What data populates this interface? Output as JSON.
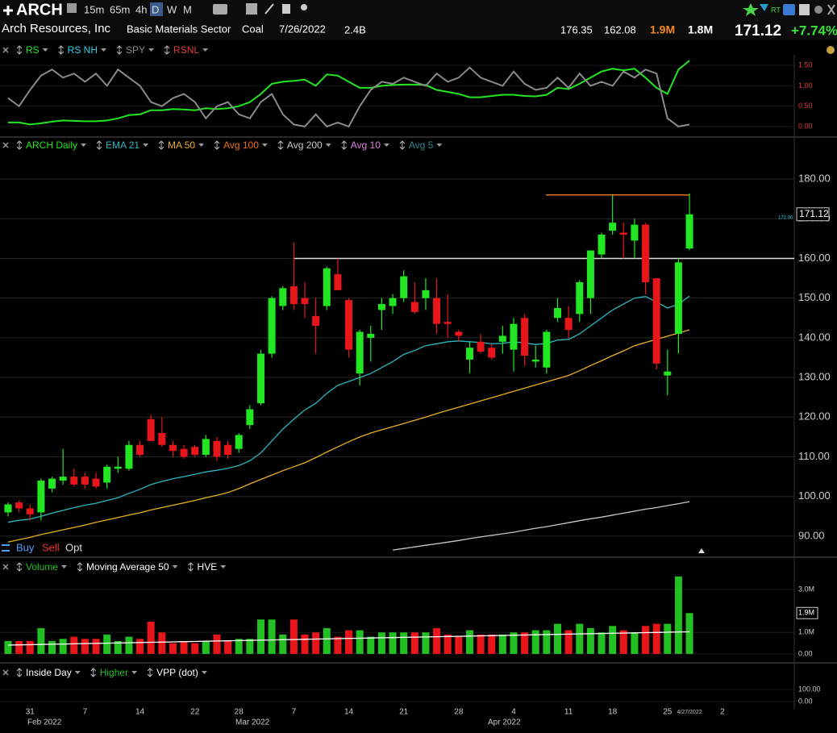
{
  "header": {
    "symbol": "ARCH",
    "timeframes": [
      "15m",
      "65m",
      "4h",
      "D",
      "W",
      "M"
    ],
    "rt": "RT",
    "company": "Arch Resources, Inc",
    "sector": "Basic Materials Sector",
    "industry": "Coal",
    "date": "7/26/2022",
    "market_cap": "2.4B",
    "high": "176.35",
    "low": "162.08",
    "volume": "1.9M",
    "avg_volume": "1.8M",
    "price": "171.12",
    "change": "+7.74%"
  },
  "order_buttons": [
    "Buy",
    "Sell",
    "Opt"
  ],
  "chart_data": [
    {
      "type": "line",
      "ylim": [
        -0.12,
        1.76
      ],
      "yticks": [
        {
          "value": 1.5,
          "label": "1.50"
        },
        {
          "value": 1,
          "label": "1.00"
        },
        {
          "value": 0.5,
          "label": "0.50"
        },
        {
          "value": 0,
          "label": "0.00"
        }
      ],
      "series": [
        {
          "name": "RS",
          "color": "#22e622",
          "values": [
            0.1,
            0.1,
            0.05,
            0.08,
            0.12,
            0.15,
            0.14,
            0.13,
            0.13,
            0.15,
            0.2,
            0.28,
            0.3,
            0.4,
            0.4,
            0.43,
            0.42,
            0.4,
            0.45,
            0.43,
            0.45,
            0.5,
            0.6,
            0.8,
            1.05,
            1.1,
            1.12,
            1.15,
            1.0,
            1.28,
            1.25,
            1.1,
            0.95,
            0.95,
            1.0,
            1.02,
            1.03,
            1.03,
            1.02,
            0.9,
            0.85,
            0.8,
            0.72,
            0.72,
            0.75,
            0.78,
            0.78,
            0.75,
            0.74,
            0.78,
            0.95,
            0.92,
            1.05,
            1.2,
            1.35,
            1.42,
            1.38,
            1.42,
            1.2,
            0.95,
            0.8,
            1.4,
            1.62
          ]
        },
        {
          "name": "RS NH",
          "color": "#2ad4f0"
        },
        {
          "name": "SPY",
          "color": "#8a8a8a",
          "values": [
            0.7,
            0.5,
            0.9,
            1.25,
            1.4,
            1.2,
            1.3,
            1.1,
            1.3,
            1.0,
            1.4,
            1.2,
            1.0,
            0.6,
            0.5,
            0.7,
            0.8,
            0.6,
            0.2,
            0.5,
            0.6,
            0.3,
            0.2,
            0.6,
            0.8,
            0.3,
            0.05,
            0.0,
            0.3,
            0.0,
            0.1,
            0.0,
            0.5,
            0.9,
            1.1,
            1.05,
            1.2,
            1.1,
            1.0,
            1.3,
            1.1,
            1.2,
            1.45,
            1.2,
            1.1,
            1.0,
            1.35,
            1.05,
            0.9,
            0.95,
            1.2,
            0.95,
            1.3,
            1.0,
            1.1,
            1.0,
            1.35,
            1.2,
            1.4,
            1.3,
            0.2,
            0.0,
            0.05
          ]
        },
        {
          "name": "RSNL",
          "color": "#e03a3a"
        }
      ]
    },
    {
      "type": "candlestick",
      "name": "ARCH Daily",
      "color": "#22e622",
      "up_color": "#22e622",
      "down_color": "#e8161b",
      "ylim": [
        84.9,
        185.5
      ],
      "yticks": [
        {
          "value": 180,
          "label": "180.00"
        },
        {
          "value": 170,
          "label": "170.00"
        },
        {
          "value": 160,
          "label": "160.00"
        },
        {
          "value": 150,
          "label": "150.00"
        },
        {
          "value": 140,
          "label": "140.00"
        },
        {
          "value": 130,
          "label": "130.00"
        },
        {
          "value": 120,
          "label": "120.00"
        },
        {
          "value": 110,
          "label": "110.00"
        },
        {
          "value": 100,
          "label": "100.00"
        },
        {
          "value": 90,
          "label": "90.00"
        }
      ],
      "categories": [
        null,
        null,
        "31",
        null,
        null,
        null,
        null,
        "7",
        null,
        null,
        null,
        null,
        "14",
        null,
        null,
        null,
        null,
        "22",
        null,
        null,
        null,
        "28",
        null,
        null,
        null,
        null,
        "7",
        null,
        null,
        null,
        null,
        "14",
        null,
        null,
        null,
        null,
        "21",
        null,
        null,
        null,
        null,
        "28",
        null,
        null,
        null,
        null,
        "4",
        null,
        null,
        null,
        null,
        "11",
        null,
        null,
        null,
        "18",
        null,
        null,
        null,
        null,
        "25",
        null,
        "4/27/2022",
        null,
        null,
        "2"
      ],
      "months": [
        "Feb 2022",
        "Mar 2022",
        "Apr 2022"
      ],
      "open": [
        96,
        98.5,
        97,
        96,
        102,
        104,
        105,
        105,
        104.5,
        103.5,
        107,
        107,
        113,
        119.5,
        116,
        113,
        112,
        112.5,
        110.5,
        114,
        113,
        112,
        118,
        123.5,
        136,
        148,
        153,
        150,
        145.5,
        148,
        156,
        149.5,
        131,
        140,
        147,
        148,
        150,
        149,
        150,
        150,
        144,
        141.5,
        134.5,
        139,
        137.5,
        139,
        137,
        145,
        134,
        132.5,
        145,
        145,
        146,
        150,
        161,
        167,
        166.5,
        164.5,
        168.5,
        155,
        130.5,
        141,
        162.5,
        null,
        null,
        null
      ],
      "high": [
        98.5,
        99,
        98,
        104.5,
        105,
        112,
        107,
        106,
        106,
        108,
        110,
        114,
        114,
        120.5,
        120,
        114,
        113,
        113,
        115.5,
        115,
        114,
        116,
        123,
        137,
        150.5,
        153,
        164,
        154,
        150,
        158,
        160,
        150,
        142,
        143,
        150,
        151,
        157,
        154,
        155,
        155,
        151,
        142,
        139,
        141,
        138.5,
        143,
        145,
        146,
        138,
        142,
        150,
        148,
        154.5,
        162,
        166.5,
        176,
        169,
        170,
        169,
        155,
        137,
        160,
        176.35,
        null,
        null,
        null
      ],
      "low": [
        95,
        96,
        94,
        94,
        101,
        103,
        102.5,
        102,
        102,
        102,
        106,
        106.5,
        110,
        114,
        112.5,
        110,
        109.5,
        110,
        110,
        109,
        109.5,
        111,
        117,
        123,
        135,
        147,
        147,
        145,
        136,
        147,
        152,
        135,
        128,
        134,
        142,
        146,
        149,
        146,
        147,
        141,
        140,
        139,
        131,
        136,
        134.5,
        136,
        131.5,
        133,
        132.5,
        131,
        144,
        140,
        144,
        146,
        160,
        166,
        160,
        160,
        151,
        132,
        125.5,
        136,
        162.08,
        null,
        null,
        null
      ],
      "close": [
        98,
        97,
        95.5,
        104,
        104.5,
        105,
        103,
        103,
        102.5,
        107.5,
        107.5,
        113,
        110.5,
        114,
        113,
        111.5,
        110,
        110.5,
        114.5,
        110,
        110.5,
        115.5,
        122,
        136,
        150,
        152.5,
        148.5,
        148.5,
        143,
        157.5,
        152,
        137,
        141.5,
        141,
        148.5,
        150,
        155.5,
        146.5,
        152,
        143.5,
        143.5,
        140.5,
        137.5,
        136.5,
        135,
        140.5,
        143.5,
        135.5,
        134.5,
        141.5,
        147.5,
        142,
        154,
        162,
        166,
        169,
        166,
        168.5,
        154,
        133.5,
        131.5,
        159,
        171.12,
        null,
        null,
        null
      ],
      "last_price_label": "171.12",
      "marker_label": "172.00",
      "levels": [
        {
          "value": 176,
          "color": "#e07020"
        },
        {
          "value": 160,
          "color": "#dddddd"
        }
      ],
      "series": [
        {
          "name": "EMA 21",
          "color": "#2ab7c0",
          "values": [
            93.5,
            94,
            94.3,
            95,
            95.8,
            96.5,
            97.2,
            97.8,
            98.3,
            99,
            99.7,
            100.8,
            101.8,
            103,
            103.8,
            104.5,
            105,
            105.6,
            106.2,
            106.6,
            107.1,
            107.8,
            109,
            111,
            114,
            117,
            119.5,
            121.8,
            123.5,
            126,
            128,
            129,
            130,
            131,
            132.5,
            134,
            135.8,
            136.8,
            138,
            138.5,
            139,
            139.2,
            139,
            138.8,
            138.5,
            138.6,
            139,
            138.7,
            138.3,
            138.6,
            139.4,
            139.6,
            141,
            143,
            145,
            147,
            148.5,
            150,
            150.4,
            149,
            147.5,
            148.5,
            150.5,
            null,
            null,
            null
          ]
        },
        {
          "name": "MA 50",
          "color": "#e8b020",
          "values": [
            88.5,
            89.1,
            89.7,
            90.4,
            91,
            91.6,
            92.2,
            92.8,
            93.5,
            94.1,
            94.7,
            95.3,
            95.9,
            96.6,
            97.2,
            97.8,
            98.4,
            99,
            99.7,
            100.3,
            101,
            102,
            103.2,
            104.3,
            105.4,
            106.5,
            107.5,
            108.5,
            109.8,
            111.2,
            112.5,
            113.8,
            115,
            116,
            116.8,
            117.6,
            118.4,
            119.2,
            120,
            120.9,
            121.7,
            122.5,
            123.3,
            124.1,
            124.9,
            125.7,
            126.5,
            127.3,
            128.1,
            128.9,
            129.7,
            130.5,
            131.7,
            133,
            134.2,
            135.5,
            136.7,
            138,
            138.8,
            139.6,
            140.4,
            141.2,
            142,
            null,
            null,
            null
          ]
        },
        {
          "name": "Avg 100",
          "color": "#e8701a"
        },
        {
          "name": "Avg 200",
          "color": "#c8c8c8",
          "values": [
            null,
            null,
            null,
            null,
            null,
            null,
            null,
            null,
            null,
            null,
            null,
            null,
            null,
            null,
            null,
            null,
            null,
            null,
            null,
            null,
            null,
            null,
            null,
            null,
            null,
            null,
            null,
            null,
            null,
            null,
            null,
            null,
            null,
            null,
            null,
            86.5,
            86.9,
            87.3,
            87.7,
            88.1,
            88.5,
            88.9,
            89.4,
            89.8,
            90.2,
            90.6,
            91,
            91.5,
            92,
            92.4,
            92.9,
            93.4,
            93.9,
            94.4,
            94.8,
            95.3,
            95.8,
            96.3,
            96.8,
            97.2,
            97.7,
            98.2,
            98.7,
            null,
            null,
            null
          ]
        },
        {
          "name": "Avg 10",
          "color": "#e080e0"
        },
        {
          "name": "Avg 5",
          "color": "#2a8a90"
        }
      ]
    },
    {
      "type": "bar",
      "name": "Volume",
      "color": "#22c022",
      "ylim": [
        -340000,
        3710000
      ],
      "yticks": [
        {
          "value": 3000000,
          "label": "3.0M"
        },
        {
          "value": 1000000,
          "label": "1.0M"
        },
        {
          "value": 0,
          "label": "0.00"
        }
      ],
      "values": [
        600000,
        600000,
        600000,
        1200000,
        600000,
        700000,
        800000,
        700000,
        700000,
        900000,
        600000,
        800000,
        700000,
        1500000,
        1000000,
        500000,
        600000,
        500000,
        600000,
        900000,
        600000,
        700000,
        700000,
        1600000,
        1600000,
        900000,
        1600000,
        900000,
        1000000,
        1200000,
        800000,
        1100000,
        1100000,
        800000,
        1000000,
        1000000,
        1000000,
        1000000,
        1000000,
        1200000,
        900000,
        800000,
        1100000,
        900000,
        900000,
        900000,
        1000000,
        1000000,
        1100000,
        1100000,
        1400000,
        1100000,
        1400000,
        1200000,
        1000000,
        1300000,
        1100000,
        1000000,
        1300000,
        1400000,
        1400000,
        3600000,
        1900000
      ],
      "last_label": "1.9M",
      "series": [
        {
          "name": "Moving Average 50",
          "color": "#ffffff",
          "values": [
            410000,
            420000,
            430000,
            440000,
            450000,
            460000,
            470000,
            480000,
            490000,
            500000,
            510000,
            520000,
            530000,
            540000,
            550000,
            560000,
            570000,
            580000,
            590000,
            600000,
            610000,
            620000,
            630000,
            640000,
            650000,
            660000,
            670000,
            680000,
            690000,
            700000,
            710000,
            720000,
            730000,
            740000,
            750000,
            760000,
            770000,
            780000,
            790000,
            800000,
            810000,
            820000,
            830000,
            840000,
            850000,
            860000,
            870000,
            880000,
            890000,
            900000,
            910000,
            920000,
            930000,
            940000,
            950000,
            960000,
            970000,
            980000,
            990000,
            1000000,
            1010000,
            1020000,
            1030000
          ]
        },
        {
          "name": "HVE",
          "color": "#ffffff"
        }
      ]
    },
    {
      "type": "indicator",
      "ylim": [
        -33,
        167
      ],
      "yticks": [
        {
          "value": 100,
          "label": "100.00"
        },
        {
          "value": 0,
          "label": "0.00"
        }
      ],
      "series": [
        {
          "name": "Inside Day",
          "color": "#ffffff"
        },
        {
          "name": "Higher",
          "color": "#22c022"
        },
        {
          "name": "VPP (dot)",
          "color": "#ffffff"
        }
      ]
    }
  ]
}
